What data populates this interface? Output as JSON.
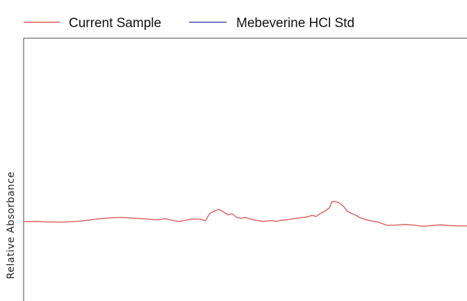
{
  "chart_data": {
    "type": "line",
    "title": "",
    "xlabel": "",
    "ylabel": "Relative Absorbance",
    "xlim": [
      0,
      100
    ],
    "ylim": [
      0,
      1
    ],
    "grid": false,
    "legend_position": "top",
    "series": [
      {
        "name": "Current Sample",
        "color": "#e05a5a",
        "x": [
          0,
          3,
          5,
          8,
          10,
          13,
          16,
          19,
          22,
          25,
          28,
          30,
          32,
          35,
          38,
          40,
          41,
          42,
          43,
          44,
          45,
          46,
          47,
          48,
          49,
          50,
          52,
          54,
          56,
          57,
          58,
          60,
          62,
          64,
          65,
          66,
          67,
          68,
          69,
          69.5,
          70,
          71,
          72,
          73,
          74,
          75,
          76,
          78,
          80,
          82,
          84,
          86,
          88,
          90,
          92,
          94,
          96,
          98,
          100
        ],
        "y": [
          0.302,
          0.303,
          0.301,
          0.3,
          0.301,
          0.304,
          0.311,
          0.316,
          0.318,
          0.315,
          0.312,
          0.309,
          0.313,
          0.302,
          0.312,
          0.311,
          0.305,
          0.334,
          0.342,
          0.349,
          0.34,
          0.328,
          0.332,
          0.319,
          0.315,
          0.318,
          0.308,
          0.303,
          0.306,
          0.303,
          0.307,
          0.311,
          0.316,
          0.32,
          0.326,
          0.322,
          0.334,
          0.342,
          0.355,
          0.378,
          0.379,
          0.375,
          0.363,
          0.342,
          0.333,
          0.326,
          0.316,
          0.306,
          0.3,
          0.288,
          0.289,
          0.291,
          0.289,
          0.284,
          0.287,
          0.29,
          0.287,
          0.286,
          0.286
        ]
      },
      {
        "name": "Mebeverine HCl Std",
        "color": "#4a4ab8",
        "x": [],
        "y": []
      }
    ]
  },
  "legend": {
    "items": [
      {
        "label": "Current Sample",
        "color": "#e05a5a"
      },
      {
        "label": "Mebeverine HCl Std",
        "color": "#4a4ab8"
      }
    ]
  }
}
